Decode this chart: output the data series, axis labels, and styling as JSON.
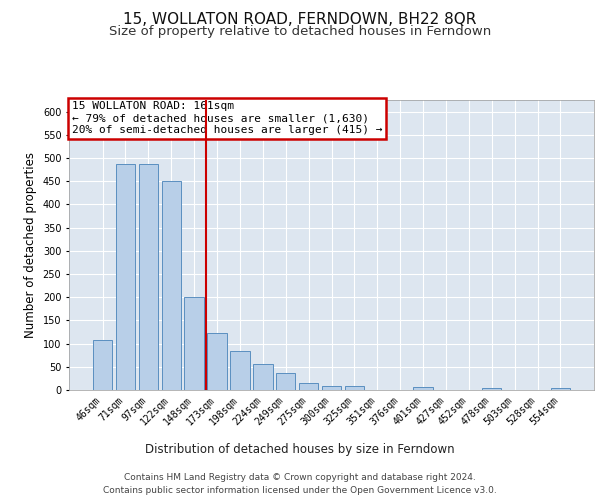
{
  "title": "15, WOLLATON ROAD, FERNDOWN, BH22 8QR",
  "subtitle": "Size of property relative to detached houses in Ferndown",
  "xlabel": "Distribution of detached houses by size in Ferndown",
  "ylabel": "Number of detached properties",
  "bar_labels": [
    "46sqm",
    "71sqm",
    "97sqm",
    "122sqm",
    "148sqm",
    "173sqm",
    "198sqm",
    "224sqm",
    "249sqm",
    "275sqm",
    "300sqm",
    "325sqm",
    "351sqm",
    "376sqm",
    "401sqm",
    "427sqm",
    "452sqm",
    "478sqm",
    "503sqm",
    "528sqm",
    "554sqm"
  ],
  "bar_values": [
    107,
    487,
    487,
    450,
    200,
    123,
    83,
    56,
    37,
    15,
    8,
    8,
    0,
    0,
    6,
    0,
    0,
    5,
    0,
    0,
    5
  ],
  "bar_color": "#b8cfe8",
  "bar_edge_color": "#5a8fc0",
  "vline_x": 4.5,
  "vline_color": "#cc0000",
  "annotation_title": "15 WOLLATON ROAD: 161sqm",
  "annotation_line1": "← 79% of detached houses are smaller (1,630)",
  "annotation_line2": "20% of semi-detached houses are larger (415) →",
  "annotation_box_color": "#cc0000",
  "ylim": [
    0,
    625
  ],
  "yticks": [
    0,
    50,
    100,
    150,
    200,
    250,
    300,
    350,
    400,
    450,
    500,
    550,
    600
  ],
  "plot_bg_color": "#dde6f0",
  "footer_line1": "Contains HM Land Registry data © Crown copyright and database right 2024.",
  "footer_line2": "Contains public sector information licensed under the Open Government Licence v3.0.",
  "title_fontsize": 11,
  "subtitle_fontsize": 9.5,
  "axis_label_fontsize": 8.5,
  "tick_fontsize": 7,
  "annotation_fontsize": 8,
  "footer_fontsize": 6.5
}
